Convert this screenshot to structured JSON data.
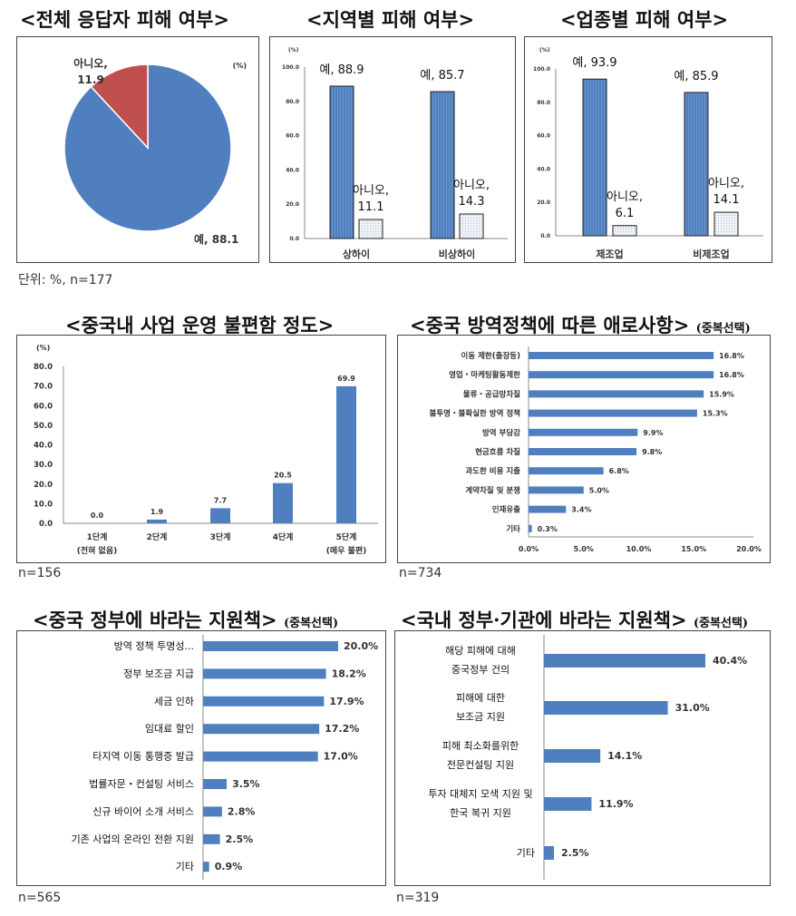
{
  "titles": {
    "overall": "<전체 응답자 피해 여부>",
    "region": "<지역별 피해 여부>",
    "industry": "<업종별 피해 여부>",
    "inconvenience": "<중국내 사업 운영 불편함 정도>",
    "quarantine": "<중국 방역정책에 따른 애로사항>",
    "quarantine_sub": "(중복선택)",
    "china_gov": "<중국 정부에 바라는 지원책>",
    "china_gov_sub": "(중복선택)",
    "korea_gov": "<국내 정부·기관에 바라는 지원책>",
    "korea_gov_sub": "(중복선택)"
  },
  "notes": {
    "overall": "단위: %, n=177",
    "inconvenience": "n=156",
    "quarantine": "n=734",
    "china_gov": "n=565",
    "korea_gov": "n=319"
  },
  "colors": {
    "blue": "#4f7fbf",
    "red": "#c0504d",
    "light": "#e8ecf2"
  },
  "chart_data": [
    {
      "type": "pie",
      "unit_label": "(%)",
      "slices": [
        {
          "label": "예",
          "value": 88.1,
          "text": "예, 88.1",
          "color": "#4f7fbf"
        },
        {
          "label": "아니오",
          "value": 11.9,
          "text": "아니오, 11.9",
          "color": "#c0504d"
        }
      ]
    },
    {
      "type": "bar",
      "unit_label": "(%)",
      "categories": [
        "상하이",
        "비상하이"
      ],
      "yticks": [
        "0.0",
        "20.0",
        "40.0",
        "60.0",
        "80.0",
        "100.0"
      ],
      "ylim": [
        0,
        100
      ],
      "series": [
        {
          "name": "예",
          "values": [
            88.9,
            85.7
          ],
          "labels": [
            "예, 88.9",
            "예, 85.7"
          ]
        },
        {
          "name": "아니오",
          "values": [
            11.1,
            14.3
          ],
          "labels": [
            "아니오, 11.1",
            "아니오, 14.3"
          ]
        }
      ]
    },
    {
      "type": "bar",
      "unit_label": "(%)",
      "categories": [
        "제조업",
        "비제조업"
      ],
      "yticks": [
        "0.0",
        "20.0",
        "40.0",
        "60.0",
        "80.0",
        "100.0"
      ],
      "ylim": [
        0,
        100
      ],
      "series": [
        {
          "name": "예",
          "values": [
            93.9,
            85.9
          ],
          "labels": [
            "예, 93.9",
            "예, 85.9"
          ]
        },
        {
          "name": "아니오",
          "values": [
            6.1,
            14.1
          ],
          "labels": [
            "아니오, 6.1",
            "아니오, 14.1"
          ]
        }
      ]
    },
    {
      "type": "bar",
      "unit_label": "(%)",
      "categories": [
        [
          "1단계",
          "(전혀 없음)"
        ],
        [
          "2단계",
          ""
        ],
        [
          "3단계",
          ""
        ],
        [
          "4단계",
          ""
        ],
        [
          "5단계",
          "(매우 불편)"
        ]
      ],
      "values": [
        0.0,
        1.9,
        7.7,
        20.5,
        69.9
      ],
      "labels": [
        "0.0",
        "1.9",
        "7.7",
        "20.5",
        "69.9"
      ],
      "yticks": [
        "0.0",
        "10.0",
        "20.0",
        "30.0",
        "40.0",
        "50.0",
        "60.0",
        "70.0",
        "80.0"
      ],
      "ylim": [
        0,
        80
      ]
    },
    {
      "type": "bar",
      "orientation": "horizontal",
      "categories": [
        "이동 제한(출장등)",
        "영업・마케팅활동제한",
        "물류・공급망차질",
        "불투명・불확실한 방역 정책",
        "방역 부담감",
        "현금흐름 차질",
        "과도한 비용 지출",
        "계약차질 및 분쟁",
        "인재유출",
        "기타"
      ],
      "values": [
        16.8,
        16.8,
        15.9,
        15.3,
        9.9,
        9.8,
        6.8,
        5.0,
        3.4,
        0.3
      ],
      "labels": [
        "16.8%",
        "16.8%",
        "15.9%",
        "15.3%",
        "9.9%",
        "9.8%",
        "6.8%",
        "5.0%",
        "3.4%",
        "0.3%"
      ],
      "xticks": [
        "0.0%",
        "5.0%",
        "10.0%",
        "15.0%",
        "20.0%"
      ],
      "xlim": [
        0,
        20
      ]
    },
    {
      "type": "bar",
      "orientation": "horizontal",
      "categories": [
        "방역 정책 투명성...",
        "정부 보조금 지급",
        "세금 인하",
        "임대료 할인",
        "타지역 이동 통행증 발급",
        "법률자문・컨설팅 서비스",
        "신규 바이어 소개 서비스",
        "기존 사업의 온라인 전환 지원",
        "기타"
      ],
      "values": [
        20.0,
        18.2,
        17.9,
        17.2,
        17.0,
        3.5,
        2.8,
        2.5,
        0.9
      ],
      "labels": [
        "20.0%",
        "18.2%",
        "17.9%",
        "17.2%",
        "17.0%",
        "3.5%",
        "2.8%",
        "2.5%",
        "0.9%"
      ]
    },
    {
      "type": "bar",
      "orientation": "horizontal",
      "categories": [
        [
          "해당 피해에 대해",
          "중국정부 건의"
        ],
        [
          "피해에 대한",
          "보조금 지원"
        ],
        [
          "피해 최소화를위한",
          "전문컨설팅 지원"
        ],
        [
          "투자 대체지 모색 지원 및",
          "한국 복귀 지원"
        ],
        [
          "기타",
          ""
        ]
      ],
      "values": [
        40.4,
        31.0,
        14.1,
        11.9,
        2.5
      ],
      "labels": [
        "40.4%",
        "31.0%",
        "14.1%",
        "11.9%",
        "2.5%"
      ]
    }
  ]
}
